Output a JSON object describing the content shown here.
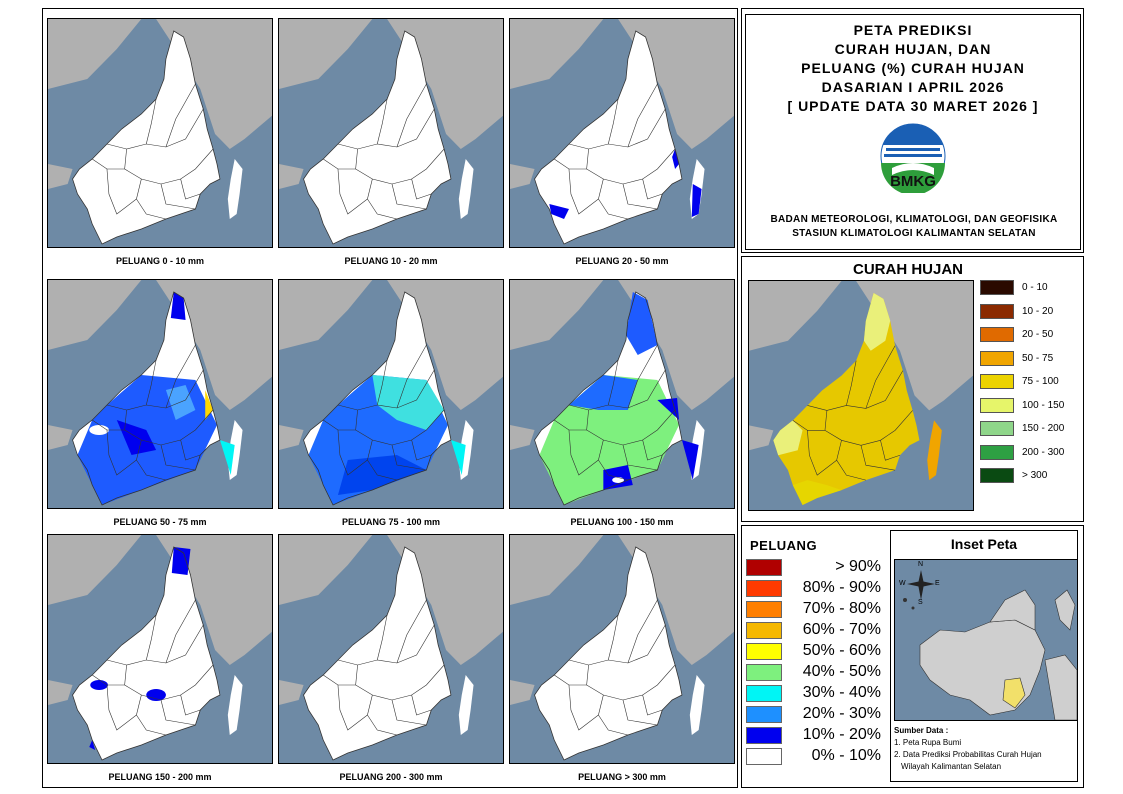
{
  "title": {
    "line1": "PETA PREDIKSI",
    "line2": "CURAH HUJAN, DAN",
    "line3": "PELUANG (%) CURAH HUJAN",
    "line4": "DASARIAN I APRIL 2026",
    "line5": "[ UPDATE DATA 30 MARET 2026 ]"
  },
  "logo": {
    "text": "BMKG",
    "icon": "bmkg-logo"
  },
  "institution": {
    "line1": "BADAN METEOROLOGI, KLIMATOLOGI, DAN GEOFISIKA",
    "line2": "STASIUN KLIMATOLOGI KALIMANTAN SELATAN"
  },
  "maps": [
    {
      "label": "PELUANG 0 - 10 mm",
      "fill": "white"
    },
    {
      "label": "PELUANG 10 - 20 mm",
      "fill": "white"
    },
    {
      "label": "PELUANG 20 - 50 mm",
      "fill": "white-blue"
    },
    {
      "label": "PELUANG 50 - 75 mm",
      "fill": "blue"
    },
    {
      "label": "PELUANG 75 - 100 mm",
      "fill": "blue-cyan"
    },
    {
      "label": "PELUANG 100 - 150 mm",
      "fill": "blue-green"
    },
    {
      "label": "PELUANG 150 - 200 mm",
      "fill": "white-blue"
    },
    {
      "label": "PELUANG 200 - 300 mm",
      "fill": "white"
    },
    {
      "label": "PELUANG > 300 mm",
      "fill": "white"
    }
  ],
  "curah_hujan": {
    "title": "CURAH HUJAN",
    "legend": [
      {
        "label": "0 - 10",
        "color": "#2a0a00"
      },
      {
        "label": "10 - 20",
        "color": "#8b2a00"
      },
      {
        "label": "20 - 50",
        "color": "#e06a00"
      },
      {
        "label": "50 - 75",
        "color": "#f0a500"
      },
      {
        "label": "75 - 100",
        "color": "#ecd300"
      },
      {
        "label": "100 - 150",
        "color": "#e6f56a"
      },
      {
        "label": "150 - 200",
        "color": "#8fd68a"
      },
      {
        "label": "200 - 300",
        "color": "#2ea043"
      },
      {
        "label": "> 300",
        "color": "#0a4a12"
      }
    ]
  },
  "peluang": {
    "title": "PELUANG",
    "legend": [
      {
        "label": "> 90%",
        "color": "#b00000"
      },
      {
        "label": "80% - 90%",
        "color": "#ff3a00"
      },
      {
        "label": "70% - 80%",
        "color": "#ff7f00"
      },
      {
        "label": "60% - 70%",
        "color": "#f5b800"
      },
      {
        "label": "50% - 60%",
        "color": "#ffff00"
      },
      {
        "label": "40% - 50%",
        "color": "#7ef07e"
      },
      {
        "label": "30% - 40%",
        "color": "#00f5f5"
      },
      {
        "label": "20% - 30%",
        "color": "#1e90ff"
      },
      {
        "label": "10% - 20%",
        "color": "#0000ee"
      },
      {
        "label": "0% - 10%",
        "color": "#ffffff"
      }
    ]
  },
  "inset": {
    "title": "Inset Peta",
    "compass": {
      "n": "N",
      "s": "S",
      "e": "E",
      "w": "W"
    }
  },
  "sources": {
    "title": "Sumber Data :",
    "items": [
      "1. Peta Rupa Bumi",
      "2. Data Prediksi Probabilitas Curah Hujan",
      "Wilayah Kalimantan Selatan"
    ]
  },
  "colors": {
    "sea": "#6e8aa5",
    "land_other": "#b0b0b0",
    "border": "#000000"
  }
}
